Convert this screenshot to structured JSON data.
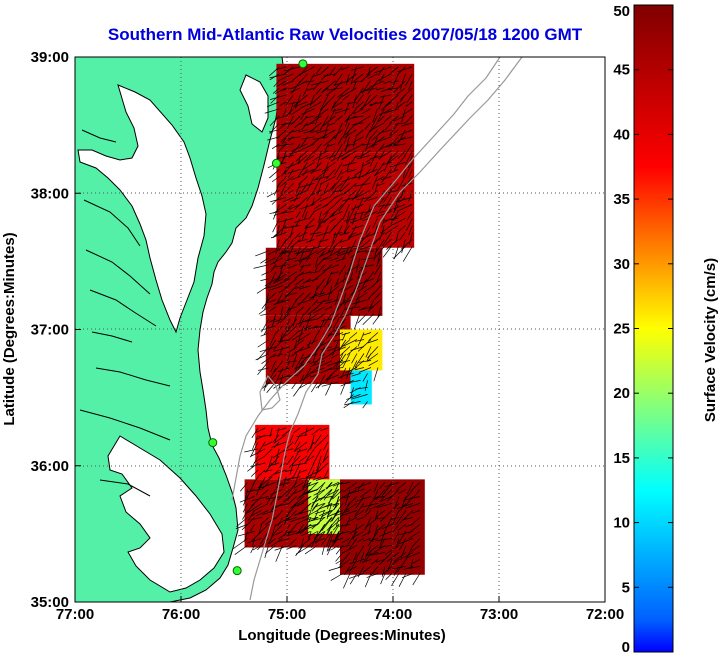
{
  "chart_data": {
    "type": "heatmap",
    "title": "Southern Mid-Atlantic Raw Velocities 2007/05/18 1200 GMT",
    "xlabel": "Longitude (Degrees:Minutes)",
    "ylabel": "Latitude (Degrees:Minutes)",
    "x_ticks": [
      {
        "value": -77,
        "label": "77:00"
      },
      {
        "value": -76,
        "label": "76:00"
      },
      {
        "value": -75,
        "label": "75:00"
      },
      {
        "value": -74,
        "label": "74:00"
      },
      {
        "value": -73,
        "label": "73:00"
      },
      {
        "value": -72,
        "label": "72:00"
      }
    ],
    "y_ticks": [
      {
        "value": 35,
        "label": "35:00"
      },
      {
        "value": 36,
        "label": "36:00"
      },
      {
        "value": 37,
        "label": "37:00"
      },
      {
        "value": 38,
        "label": "38:00"
      },
      {
        "value": 39,
        "label": "39:00"
      }
    ],
    "xlim": [
      -77,
      -72
    ],
    "ylim": [
      35,
      39
    ],
    "grid": true,
    "colorbar": {
      "label": "Surface Velocity (cm/s)",
      "range": [
        0,
        50
      ],
      "ticks": [
        0,
        5,
        10,
        15,
        20,
        25,
        30,
        35,
        40,
        45,
        50
      ],
      "colormap": "jet"
    },
    "land_color": "#55f0a8",
    "stations": [
      {
        "lon": -74.85,
        "lat": 38.95
      },
      {
        "lon": -75.1,
        "lat": 38.22
      },
      {
        "lon": -75.7,
        "lat": 36.17
      },
      {
        "lon": -75.47,
        "lat": 35.23
      }
    ],
    "velocity_field_regions": [
      {
        "lon": [
          -75.1,
          -73.8
        ],
        "lat": [
          38.3,
          38.95
        ],
        "speed": 46
      },
      {
        "lon": [
          -75.1,
          -73.8
        ],
        "lat": [
          37.6,
          38.3
        ],
        "speed": 44
      },
      {
        "lon": [
          -75.2,
          -74.1
        ],
        "lat": [
          37.1,
          37.6
        ],
        "speed": 47
      },
      {
        "lon": [
          -75.2,
          -74.4
        ],
        "lat": [
          36.6,
          37.1
        ],
        "speed": 46
      },
      {
        "lon": [
          -74.5,
          -74.1
        ],
        "lat": [
          36.7,
          37.0
        ],
        "speed": 26
      },
      {
        "lon": [
          -74.4,
          -74.2
        ],
        "lat": [
          36.45,
          36.7
        ],
        "speed": 11
      },
      {
        "lon": [
          -75.3,
          -74.6
        ],
        "lat": [
          35.9,
          36.3
        ],
        "speed": 38
      },
      {
        "lon": [
          -75.4,
          -74.5
        ],
        "lat": [
          35.4,
          35.9
        ],
        "speed": 46
      },
      {
        "lon": [
          -74.5,
          -73.7
        ],
        "lat": [
          35.2,
          35.9
        ],
        "speed": 48
      },
      {
        "lon": [
          -74.8,
          -74.5
        ],
        "lat": [
          35.5,
          35.9
        ],
        "speed": 22
      }
    ]
  }
}
